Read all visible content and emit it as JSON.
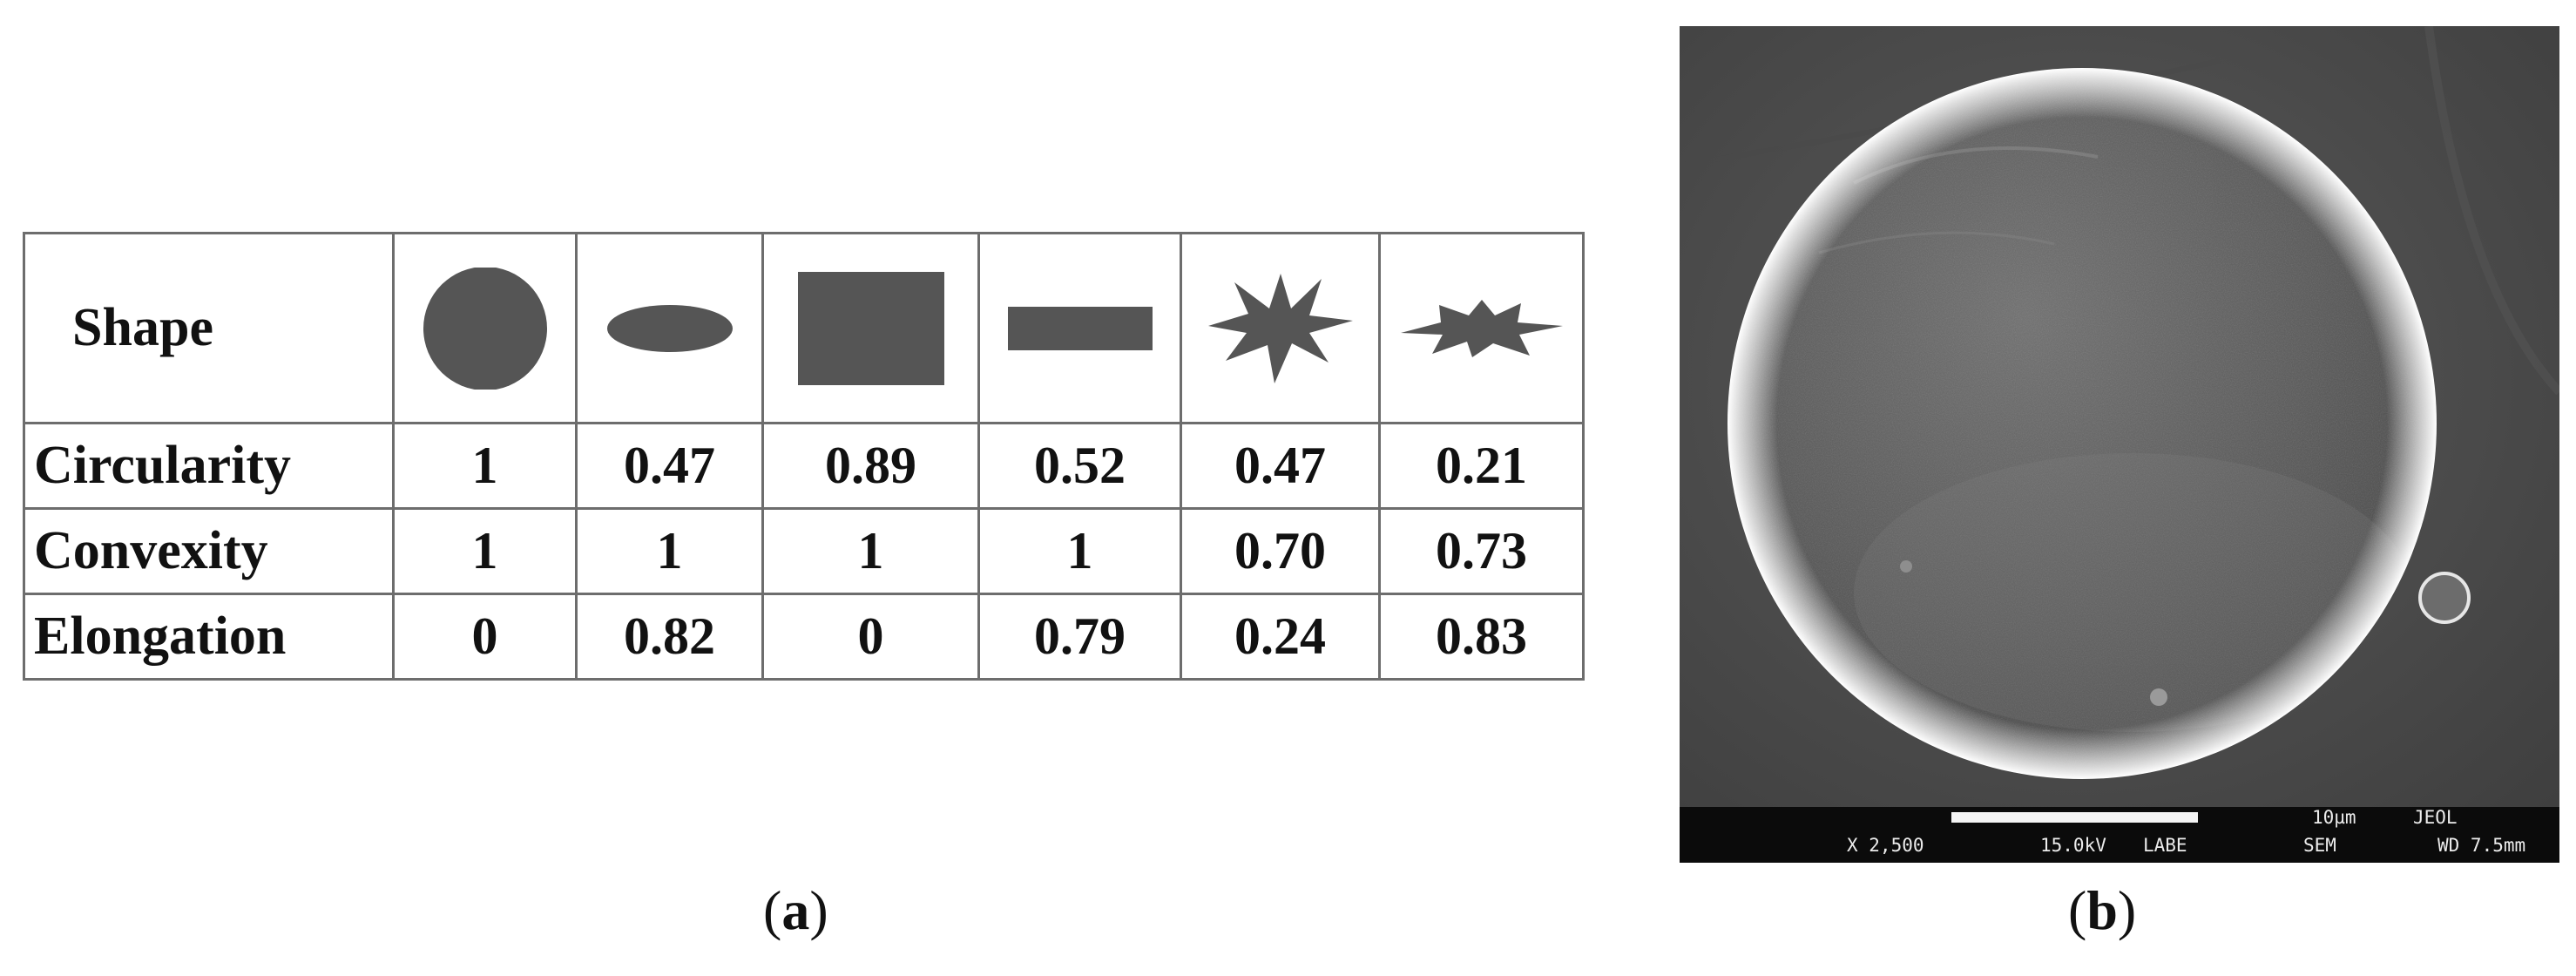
{
  "panel_a": {
    "label_open": "(",
    "label_letter": "a",
    "label_close": ")",
    "header": "Shape",
    "shapes": [
      "circle-icon",
      "ellipse-icon",
      "square-icon",
      "rectangle-icon",
      "star-icon",
      "flat-star-icon"
    ],
    "rows": [
      {
        "name": "Circularity",
        "values": [
          "1",
          "0.47",
          "0.89",
          "0.52",
          "0.47",
          "0.21"
        ]
      },
      {
        "name": "Convexity",
        "values": [
          "1",
          "1",
          "1",
          "1",
          "0.70",
          "0.73"
        ]
      },
      {
        "name": "Elongation",
        "values": [
          "0",
          "0.82",
          "0",
          "0.79",
          "0.24",
          "0.83"
        ]
      }
    ],
    "shape_color": "#555555"
  },
  "panel_b": {
    "label_open": "(",
    "label_letter": "b",
    "label_close": ")",
    "scale_label": "10µm",
    "vendor": "JEOL",
    "magnification": "X 2,500",
    "voltage": "15.0kV",
    "detector": "LABE",
    "mode": "SEM",
    "working_distance": "WD 7.5mm"
  }
}
